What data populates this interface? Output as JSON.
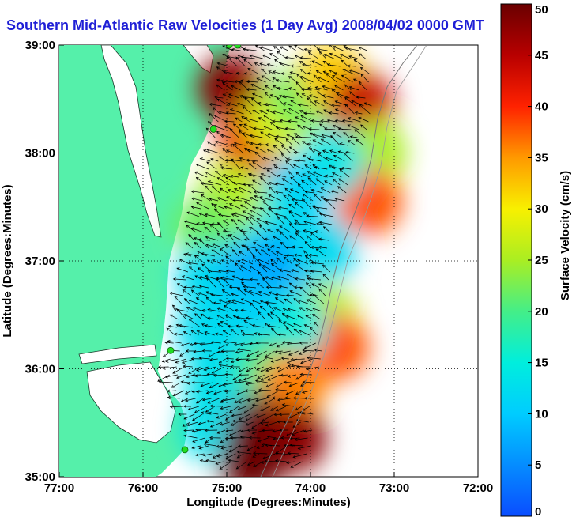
{
  "chart_data": {
    "type": "heatmap",
    "title": "Southern Mid-Atlantic Raw Velocities (1 Day Avg) 2008/04/02 0000 GMT",
    "xlabel": "Longitude (Degrees:Minutes)",
    "ylabel": "Latitude (Degrees:Minutes)",
    "xlim": [
      -77,
      -72
    ],
    "ylim": [
      35,
      39
    ],
    "x_ticks": [
      {
        "value": -77,
        "label": "77:00"
      },
      {
        "value": -76,
        "label": "76:00"
      },
      {
        "value": -75,
        "label": "75:00"
      },
      {
        "value": -74,
        "label": "74:00"
      },
      {
        "value": -73,
        "label": "73:00"
      },
      {
        "value": -72,
        "label": "72:00"
      }
    ],
    "y_ticks": [
      {
        "value": 35,
        "label": "35:00"
      },
      {
        "value": 36,
        "label": "36:00"
      },
      {
        "value": 37,
        "label": "37:00"
      },
      {
        "value": 38,
        "label": "38:00"
      },
      {
        "value": 39,
        "label": "39:00"
      }
    ],
    "grid": true,
    "colorbar": {
      "label": "Surface Velocity (cm/s)",
      "range": [
        0,
        50
      ],
      "ticks": [
        0,
        5,
        10,
        15,
        20,
        25,
        30,
        35,
        40,
        45,
        50
      ],
      "colormap": "jet"
    },
    "land_color": "#55f0aa",
    "site_marker_color": "#22dd22",
    "velocity_field": [
      {
        "lon": -74.95,
        "lat": 38.6,
        "speed": 48
      },
      {
        "lon": -74.7,
        "lat": 38.1,
        "speed": 42
      },
      {
        "lon": -74.4,
        "lat": 38.3,
        "speed": 28
      },
      {
        "lon": -74.1,
        "lat": 38.5,
        "speed": 22
      },
      {
        "lon": -73.75,
        "lat": 38.7,
        "speed": 32
      },
      {
        "lon": -73.4,
        "lat": 38.45,
        "speed": 44
      },
      {
        "lon": -73.25,
        "lat": 38.0,
        "speed": 25
      },
      {
        "lon": -73.3,
        "lat": 37.55,
        "speed": 38
      },
      {
        "lon": -73.75,
        "lat": 37.9,
        "speed": 14
      },
      {
        "lon": -74.15,
        "lat": 37.65,
        "speed": 11
      },
      {
        "lon": -74.6,
        "lat": 37.35,
        "speed": 14
      },
      {
        "lon": -74.95,
        "lat": 37.6,
        "speed": 26
      },
      {
        "lon": -75.25,
        "lat": 37.3,
        "speed": 22
      },
      {
        "lon": -75.2,
        "lat": 36.85,
        "speed": 12
      },
      {
        "lon": -74.7,
        "lat": 36.9,
        "speed": 8
      },
      {
        "lon": -74.25,
        "lat": 37.0,
        "speed": 7
      },
      {
        "lon": -73.85,
        "lat": 37.1,
        "speed": 12
      },
      {
        "lon": -73.85,
        "lat": 36.5,
        "speed": 26
      },
      {
        "lon": -73.7,
        "lat": 36.2,
        "speed": 38
      },
      {
        "lon": -74.2,
        "lat": 36.4,
        "speed": 15
      },
      {
        "lon": -74.75,
        "lat": 36.4,
        "speed": 11
      },
      {
        "lon": -75.2,
        "lat": 36.35,
        "speed": 12
      },
      {
        "lon": -75.1,
        "lat": 35.85,
        "speed": 13
      },
      {
        "lon": -74.5,
        "lat": 36.0,
        "speed": 20
      },
      {
        "lon": -74.2,
        "lat": 35.85,
        "speed": 36
      },
      {
        "lon": -75.15,
        "lat": 35.45,
        "speed": 13
      },
      {
        "lon": -74.6,
        "lat": 35.45,
        "speed": 50
      },
      {
        "lon": -74.2,
        "lat": 35.35,
        "speed": 48
      },
      {
        "lon": -74.7,
        "lat": 35.15,
        "speed": 50
      }
    ],
    "sites": [
      {
        "lon": -74.87,
        "lat": 39.0
      },
      {
        "lon": -74.97,
        "lat": 39.0
      },
      {
        "lon": -75.16,
        "lat": 38.22
      },
      {
        "lon": -75.67,
        "lat": 36.17
      },
      {
        "lon": -75.5,
        "lat": 35.25
      }
    ]
  }
}
